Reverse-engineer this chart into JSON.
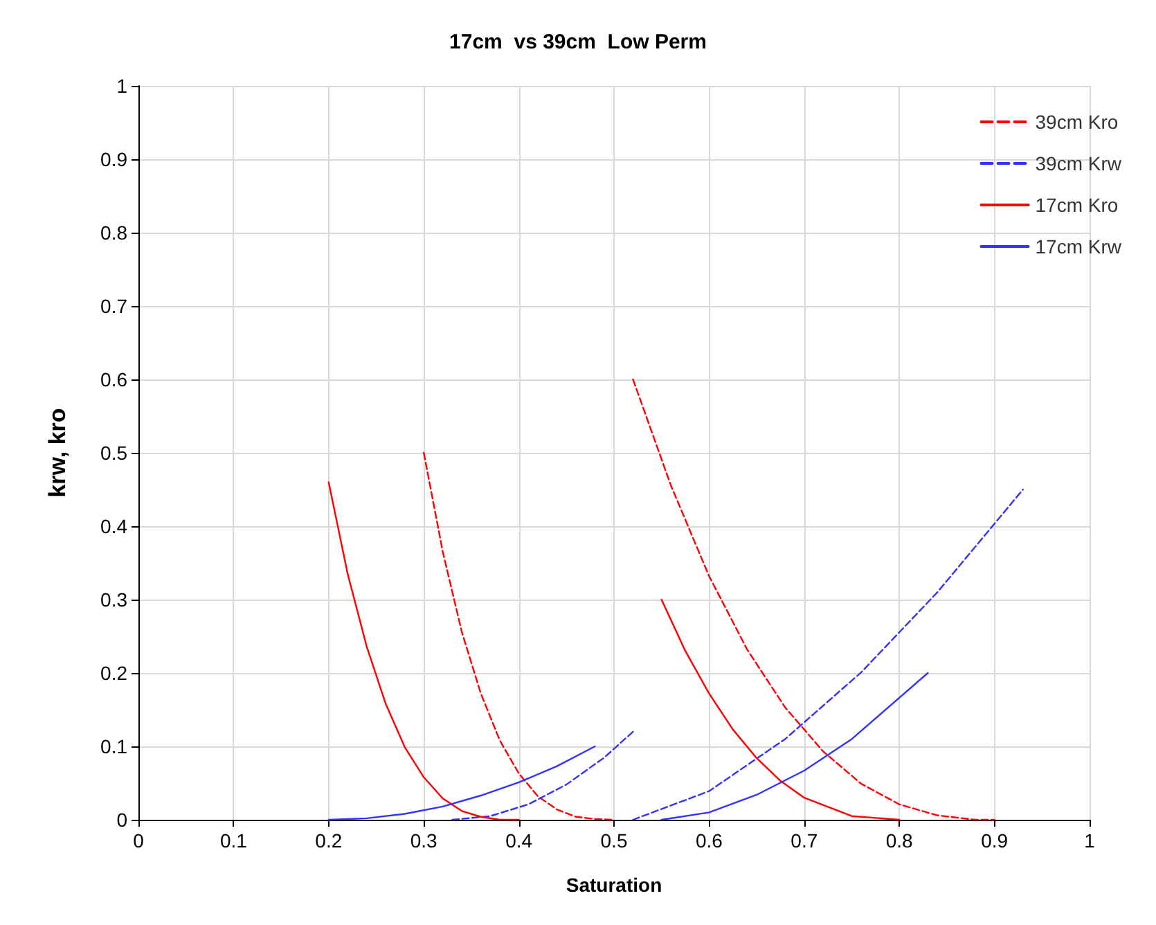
{
  "chart_data": {
    "type": "line",
    "title": "17cm  vs 39cm  Low Perm",
    "xlabel": "Saturation",
    "ylabel": "krw, kro",
    "xlim": [
      0,
      1
    ],
    "xticks": [
      0,
      0.1,
      0.2,
      0.3,
      0.4,
      0.5,
      0.6,
      0.7,
      0.8,
      0.9,
      1
    ],
    "ylim": [
      0,
      1
    ],
    "yticks": [
      0,
      0.1,
      0.2,
      0.3,
      0.4,
      0.5,
      0.6,
      0.7,
      0.8,
      0.9,
      1
    ],
    "grid": true,
    "legend": "top right",
    "marker": "none",
    "series": [
      {
        "name": "39cm Kro",
        "color": "#ff0000",
        "line_style": "dashed",
        "x": [
          0.3,
          0.32,
          0.34,
          0.36,
          0.38,
          0.4,
          0.42,
          0.44,
          0.46,
          0.48,
          0.5,
          null,
          0.52,
          0.56,
          0.6,
          0.64,
          0.68,
          0.72,
          0.76,
          0.8,
          0.84,
          0.88,
          0.9
        ],
        "values": [
          0.5,
          0.365,
          0.256,
          0.172,
          0.108,
          0.063,
          0.032,
          0.014,
          0.004,
          0.001,
          0,
          null,
          0.6,
          0.455,
          0.332,
          0.232,
          0.153,
          0.093,
          0.049,
          0.021,
          0.006,
          0,
          0
        ]
      },
      {
        "name": "39cm Krw",
        "color": "#3333ff",
        "line_style": "dashed",
        "x": [
          0.33,
          0.37,
          0.41,
          0.45,
          0.49,
          0.52,
          null,
          0.52,
          0.6,
          0.68,
          0.76,
          0.84,
          0.93
        ],
        "values": [
          0,
          0.005,
          0.021,
          0.048,
          0.085,
          0.12,
          null,
          0,
          0.039,
          0.11,
          0.201,
          0.31,
          0.45
        ]
      },
      {
        "name": "17cm Kro",
        "color": "#ff0000",
        "line_style": "solid",
        "x": [
          0.2,
          0.22,
          0.24,
          0.26,
          0.28,
          0.3,
          0.32,
          0.34,
          0.36,
          0.38,
          0.4,
          null,
          0.55,
          0.575,
          0.6,
          0.625,
          0.65,
          0.675,
          0.7,
          0.75,
          0.8
        ],
        "values": [
          0.46,
          0.335,
          0.236,
          0.158,
          0.099,
          0.058,
          0.029,
          0.012,
          0.004,
          0,
          0,
          null,
          0.3,
          0.23,
          0.172,
          0.123,
          0.084,
          0.053,
          0.03,
          0.005,
          0
        ]
      },
      {
        "name": "17cm Krw",
        "color": "#3333ff",
        "line_style": "solid",
        "x": [
          0.2,
          0.24,
          0.28,
          0.32,
          0.36,
          0.4,
          0.44,
          0.48,
          null,
          0.55,
          0.6,
          0.65,
          0.7,
          0.75,
          0.83
        ],
        "values": [
          0,
          0.002,
          0.008,
          0.018,
          0.033,
          0.051,
          0.073,
          0.1,
          null,
          0,
          0.01,
          0.034,
          0.067,
          0.11,
          0.2
        ]
      }
    ]
  }
}
